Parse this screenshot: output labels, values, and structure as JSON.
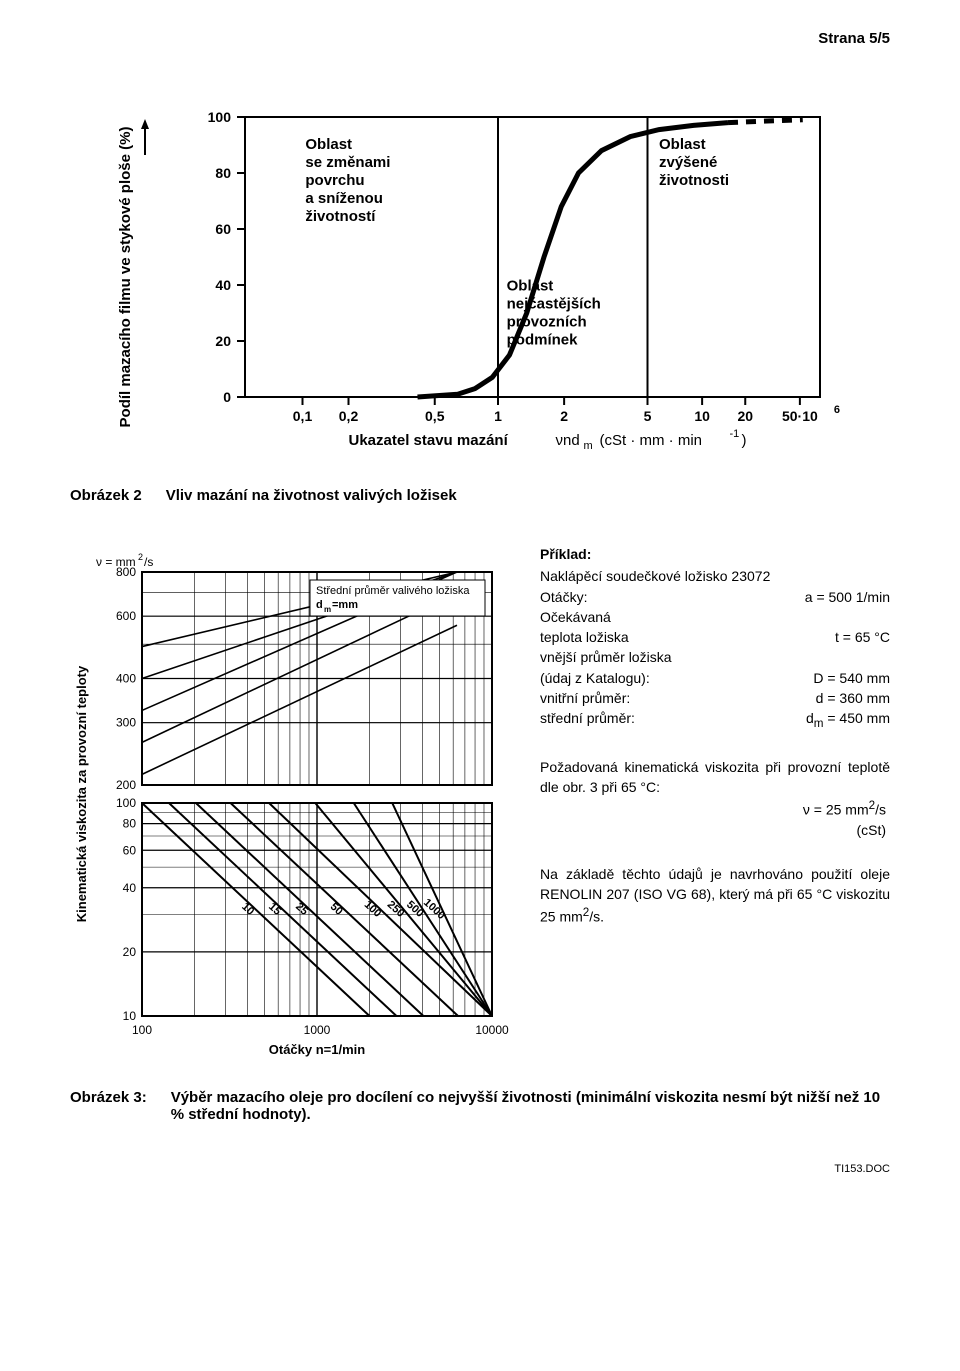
{
  "page_num_label": "Strana 5/5",
  "footer_code": "TI153.DOC",
  "chart1": {
    "type": "line",
    "stroke": "#000000",
    "background": "#ffffff",
    "y_axis_label": "Podíl mazacího filmu ve stykové ploše (%)",
    "y_ticks": [
      0,
      20,
      40,
      60,
      80,
      100
    ],
    "x_axis_label_prefix": "Ukazatel stavu mazání",
    "x_axis_label_formula": "νnd",
    "x_axis_label_formula_sub": "m",
    "x_axis_label_units": "(cSt · mm · min",
    "x_axis_label_units_exp": "-1",
    "x_axis_label_units_close": ")",
    "x_ticks_labels": [
      "0,1",
      "0,2",
      "0,5",
      "1",
      "2",
      "5",
      "10",
      "20",
      "50·10"
    ],
    "x_ticks_last_exp": "6",
    "x_ticks_pos": [
      0.1,
      0.18,
      0.33,
      0.44,
      0.555,
      0.7,
      0.795,
      0.87,
      0.965
    ],
    "vline_at": [
      0.44,
      0.7
    ],
    "annotations": {
      "left": [
        "Oblast",
        "se změnami",
        "povrchu",
        "a sníženou",
        "životností"
      ],
      "mid": [
        "Oblast",
        "nejčastějších",
        "provozních",
        "podmínek"
      ],
      "right": [
        "Oblast",
        "zvýšené",
        "životnosti"
      ]
    },
    "curve_points": [
      [
        0.3,
        0.0
      ],
      [
        0.37,
        0.01
      ],
      [
        0.4,
        0.03
      ],
      [
        0.43,
        0.07
      ],
      [
        0.46,
        0.15
      ],
      [
        0.49,
        0.3
      ],
      [
        0.52,
        0.5
      ],
      [
        0.55,
        0.68
      ],
      [
        0.58,
        0.8
      ],
      [
        0.62,
        0.88
      ],
      [
        0.67,
        0.93
      ],
      [
        0.72,
        0.955
      ],
      [
        0.78,
        0.97
      ],
      [
        0.84,
        0.98
      ]
    ],
    "curve_dashed_tail": [
      [
        0.84,
        0.98
      ],
      [
        0.9,
        0.985
      ],
      [
        0.97,
        0.99
      ]
    ],
    "axis_fontsize": 14,
    "label_fontsize": 15
  },
  "fig2_label": "Obrázek 2",
  "fig2_caption": "Vliv mazání na životnost valivých ložisek",
  "chart2": {
    "type": "nomogram",
    "background": "#ffffff",
    "stroke": "#000000",
    "y_axis_label": "Kinematická viskozita za provozní teploty",
    "y_unit_prefix": "ν = mm",
    "y_unit_exp": "2",
    "y_unit_suffix": "/s",
    "y_ticks_top": [
      200,
      300,
      400,
      600,
      800
    ],
    "y_ticks_bottom": [
      10,
      20,
      40,
      60,
      80,
      100
    ],
    "x_axis_label": "Otáčky  n=1/min",
    "x_ticks": [
      100,
      1000,
      10000
    ],
    "inset_label_lines": [
      "Střední průměr valivého ložiska",
      "d"
    ],
    "inset_label_sub": "m",
    "inset_label_suffix": "=mm",
    "diag_labels_top": [
      "10",
      "15",
      "25",
      "50",
      "100",
      "250",
      "500",
      "1000"
    ]
  },
  "example": {
    "title": "Příklad:",
    "subtitle": "Naklápěcí soudečkové ložisko 23072",
    "rows": [
      {
        "k": "Otáčky:",
        "v": "a = 500 1/min"
      },
      {
        "k": "Očekávaná",
        "v": ""
      },
      {
        "k": "teplota ložiska",
        "v": "t = 65 °C"
      },
      {
        "k": "vnější průměr ložiska",
        "v": ""
      },
      {
        "k": "(údaj z Katalogu):",
        "v": "D = 540 mm"
      },
      {
        "k": "vnitřní průměr:",
        "v": "d = 360 mm"
      },
      {
        "k_html": "střední průměr:",
        "v_html": "d<sub>m</sub> = 450 mm"
      }
    ],
    "req_text": "Požadovaná kinematická viskozita při provozní teplotě dle obr. 3 při 65 °C:",
    "req_val1_html": "ν = 25 mm<sup>2</sup>/s",
    "req_val2": "(cSt)",
    "rec_text_html": "Na základě těchto údajů je navrhováno použití oleje RENOLIN 207 (ISO VG 68), který má při 65 °C viskozitu 25 mm<sup>2</sup>/s."
  },
  "fig3_label": "Obrázek 3:",
  "fig3_caption": "Výběr mazacího oleje pro docílení co nejvyšší životnosti (minimální viskozita nesmí být nižší než 10 % střední hodnoty)."
}
